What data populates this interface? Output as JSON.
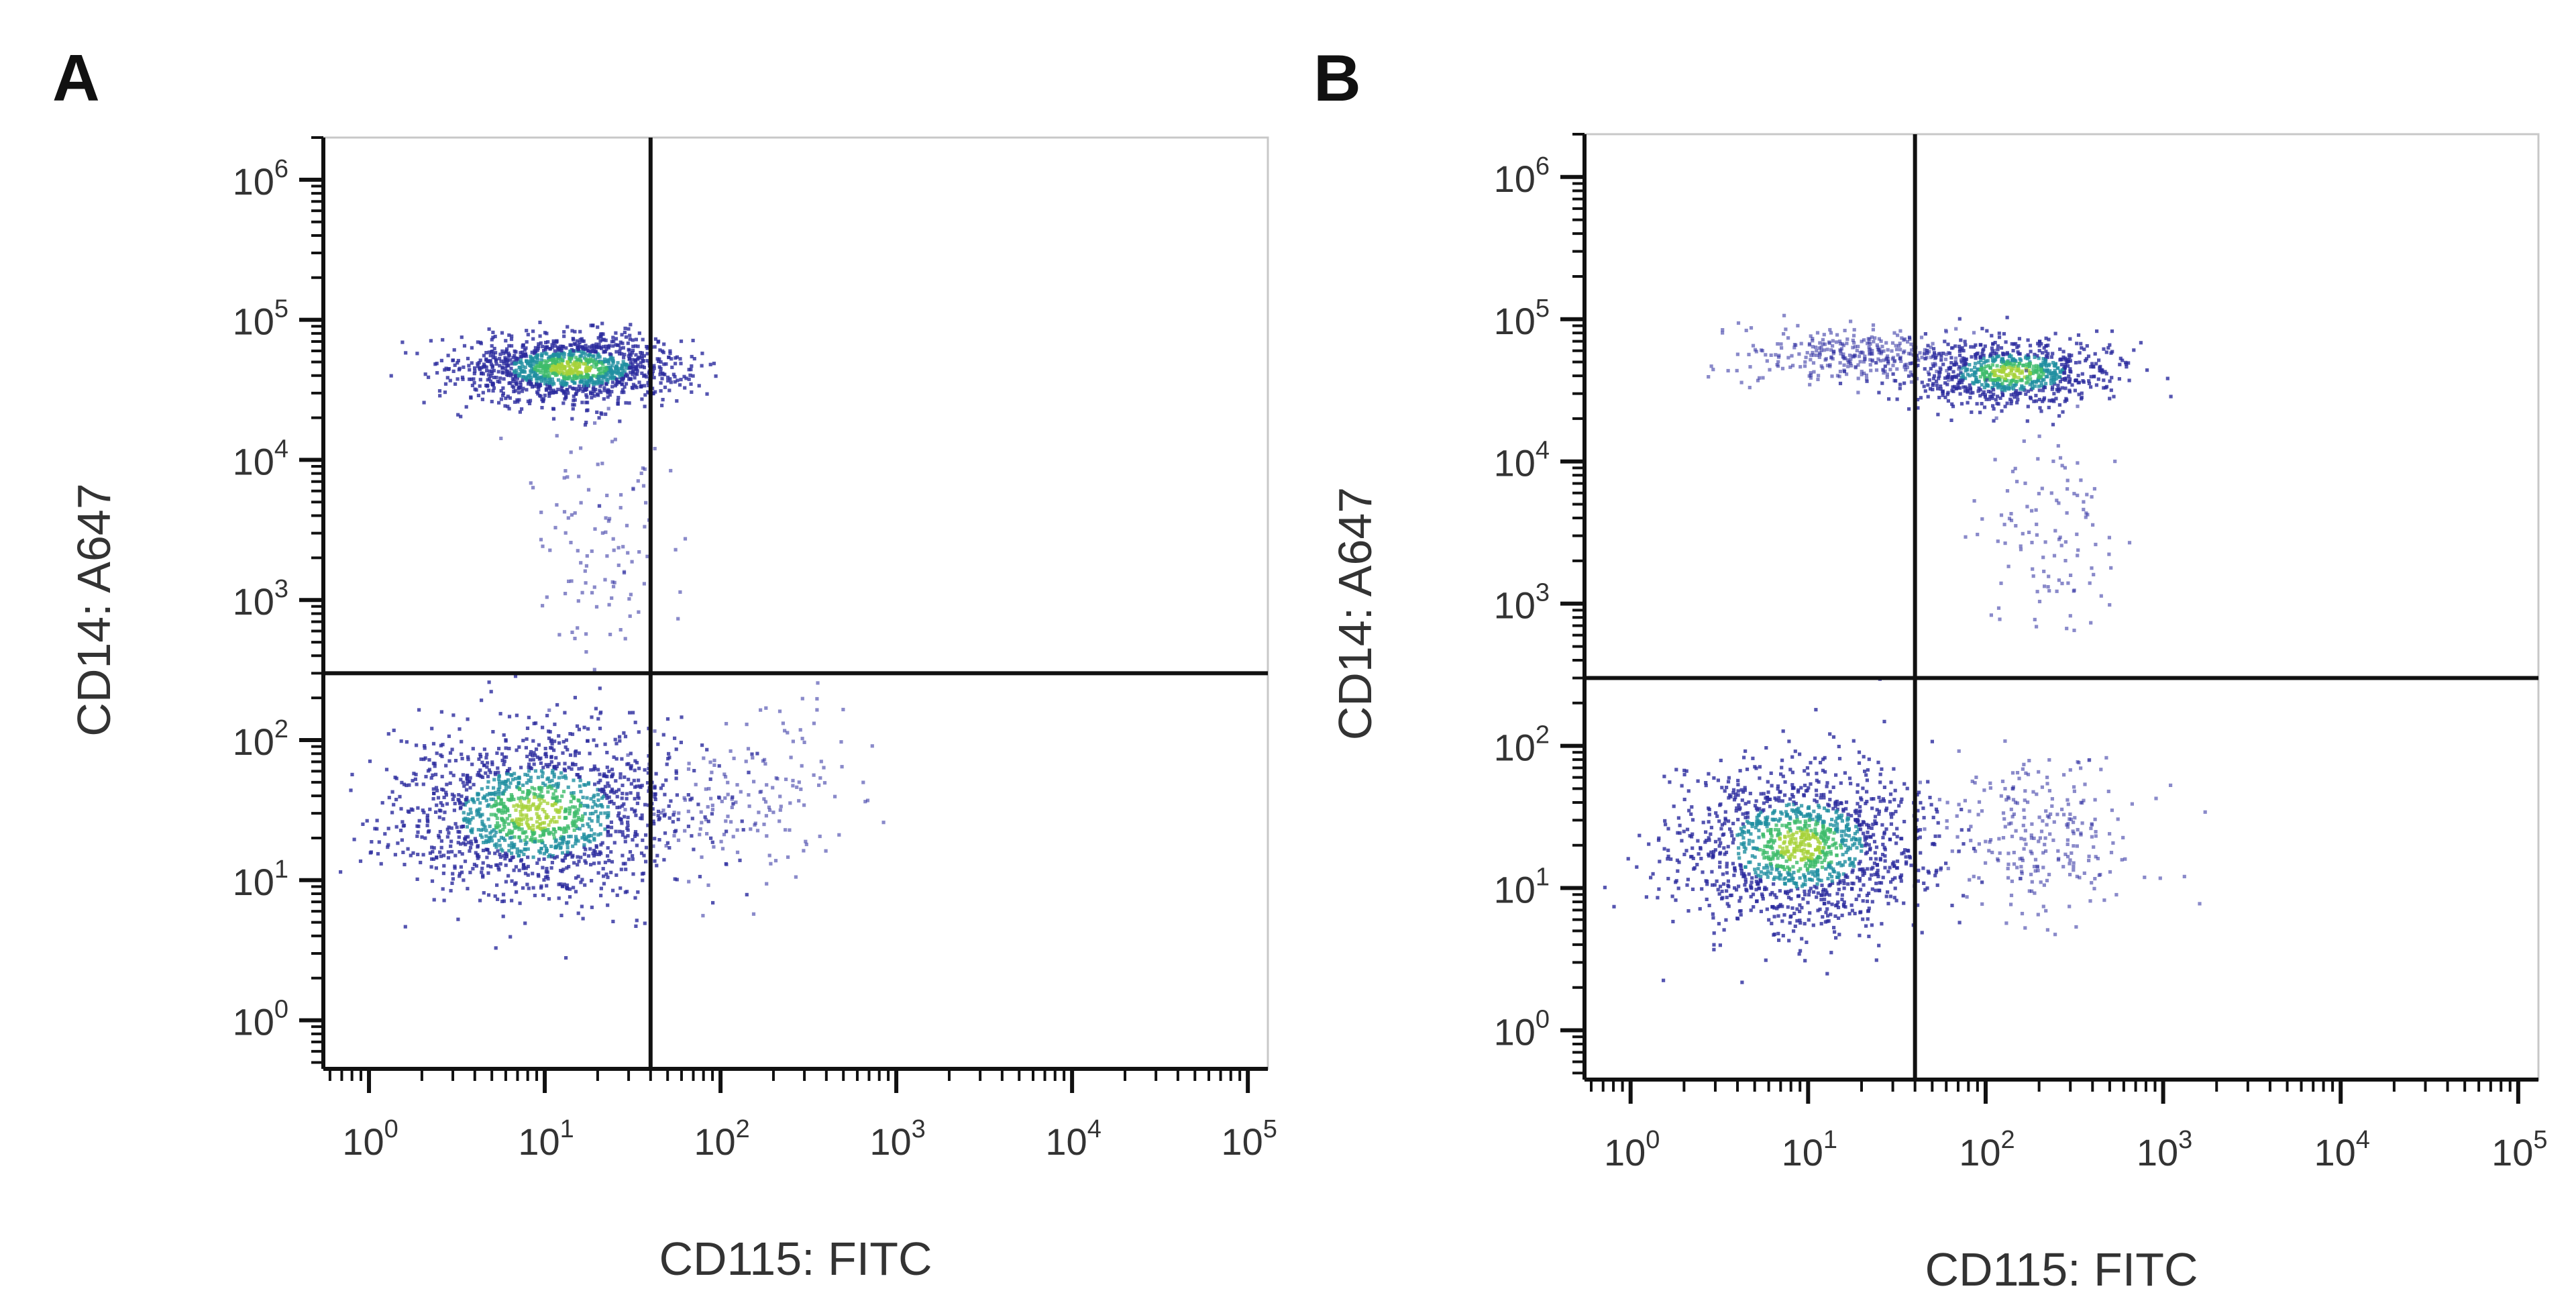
{
  "figure": {
    "panels": [
      "A",
      "B"
    ]
  },
  "chart_data": [
    {
      "panel_label": "A",
      "type": "scatter",
      "plot_style": "flow cytometry pseudocolor dot plot with quadrant gates",
      "xlabel": "CD115: FITC",
      "ylabel": "CD14: A647",
      "x_scale": "log",
      "y_scale": "log",
      "xlim": [
        0.55,
        130000
      ],
      "ylim": [
        0.45,
        2000000
      ],
      "x_ticks": [
        {
          "base": "10",
          "exp": "0",
          "value": 1
        },
        {
          "base": "10",
          "exp": "1",
          "value": 10
        },
        {
          "base": "10",
          "exp": "2",
          "value": 100
        },
        {
          "base": "10",
          "exp": "3",
          "value": 1000
        },
        {
          "base": "10",
          "exp": "4",
          "value": 10000
        },
        {
          "base": "10",
          "exp": "5",
          "value": 100000
        }
      ],
      "y_ticks": [
        {
          "base": "10",
          "exp": "0",
          "value": 1
        },
        {
          "base": "10",
          "exp": "1",
          "value": 10
        },
        {
          "base": "10",
          "exp": "2",
          "value": 100
        },
        {
          "base": "10",
          "exp": "3",
          "value": 1000
        },
        {
          "base": "10",
          "exp": "4",
          "value": 10000
        },
        {
          "base": "10",
          "exp": "5",
          "value": 100000
        },
        {
          "base": "10",
          "exp": "6",
          "value": 1000000
        }
      ],
      "gate": {
        "x": 40,
        "y": 300
      },
      "point_color": "#2a2a9e",
      "density_colors": [
        "#2a2a9e",
        "#1f8fa0",
        "#3dbb6a",
        "#a6d23a"
      ],
      "populations": [
        {
          "name_hint": "upper-left dense",
          "center": [
            14,
            45000
          ],
          "spread": [
            0.32,
            0.12
          ],
          "count": 1300,
          "dense": true
        },
        {
          "name_hint": "upper-left tail",
          "center": [
            22,
            2500
          ],
          "spread": [
            0.22,
            0.45
          ],
          "count": 110,
          "dense": false
        },
        {
          "name_hint": "lower-left",
          "center": [
            9,
            30
          ],
          "spread": [
            0.4,
            0.3
          ],
          "count": 1500,
          "dense": true
        },
        {
          "name_hint": "lower-right sparse",
          "center": [
            150,
            40
          ],
          "spread": [
            0.35,
            0.3
          ],
          "count": 160,
          "dense": false
        }
      ]
    },
    {
      "panel_label": "B",
      "type": "scatter",
      "plot_style": "flow cytometry pseudocolor dot plot with quadrant gates",
      "xlabel": "CD115: FITC",
      "ylabel": "CD14: A647",
      "x_scale": "log",
      "y_scale": "log",
      "xlim": [
        0.55,
        130000
      ],
      "ylim": [
        0.45,
        2000000
      ],
      "x_ticks": [
        {
          "base": "10",
          "exp": "0",
          "value": 1
        },
        {
          "base": "10",
          "exp": "1",
          "value": 10
        },
        {
          "base": "10",
          "exp": "2",
          "value": 100
        },
        {
          "base": "10",
          "exp": "3",
          "value": 1000
        },
        {
          "base": "10",
          "exp": "4",
          "value": 10000
        },
        {
          "base": "10",
          "exp": "5",
          "value": 100000
        }
      ],
      "y_ticks": [
        {
          "base": "10",
          "exp": "0",
          "value": 1
        },
        {
          "base": "10",
          "exp": "1",
          "value": 10
        },
        {
          "base": "10",
          "exp": "2",
          "value": 100
        },
        {
          "base": "10",
          "exp": "3",
          "value": 1000
        },
        {
          "base": "10",
          "exp": "4",
          "value": 10000
        },
        {
          "base": "10",
          "exp": "5",
          "value": 100000
        },
        {
          "base": "10",
          "exp": "6",
          "value": 1000000
        }
      ],
      "gate": {
        "x": 40,
        "y": 300
      },
      "point_color": "#2a2a9e",
      "density_colors": [
        "#2a2a9e",
        "#1f8fa0",
        "#3dbb6a",
        "#a6d23a"
      ],
      "populations": [
        {
          "name_hint": "upper-right dense",
          "center": [
            140,
            42000
          ],
          "spread": [
            0.28,
            0.12
          ],
          "count": 800,
          "dense": true
        },
        {
          "name_hint": "upper-left sparse",
          "center": [
            18,
            55000
          ],
          "spread": [
            0.3,
            0.1
          ],
          "count": 320,
          "dense": false
        },
        {
          "name_hint": "upper-right tail",
          "center": [
            220,
            3000
          ],
          "spread": [
            0.2,
            0.4
          ],
          "count": 110,
          "dense": false
        },
        {
          "name_hint": "lower-left",
          "center": [
            9,
            20
          ],
          "spread": [
            0.35,
            0.28
          ],
          "count": 1400,
          "dense": true
        },
        {
          "name_hint": "lower-right sparse",
          "center": [
            200,
            22
          ],
          "spread": [
            0.28,
            0.3
          ],
          "count": 260,
          "dense": false
        }
      ]
    }
  ]
}
